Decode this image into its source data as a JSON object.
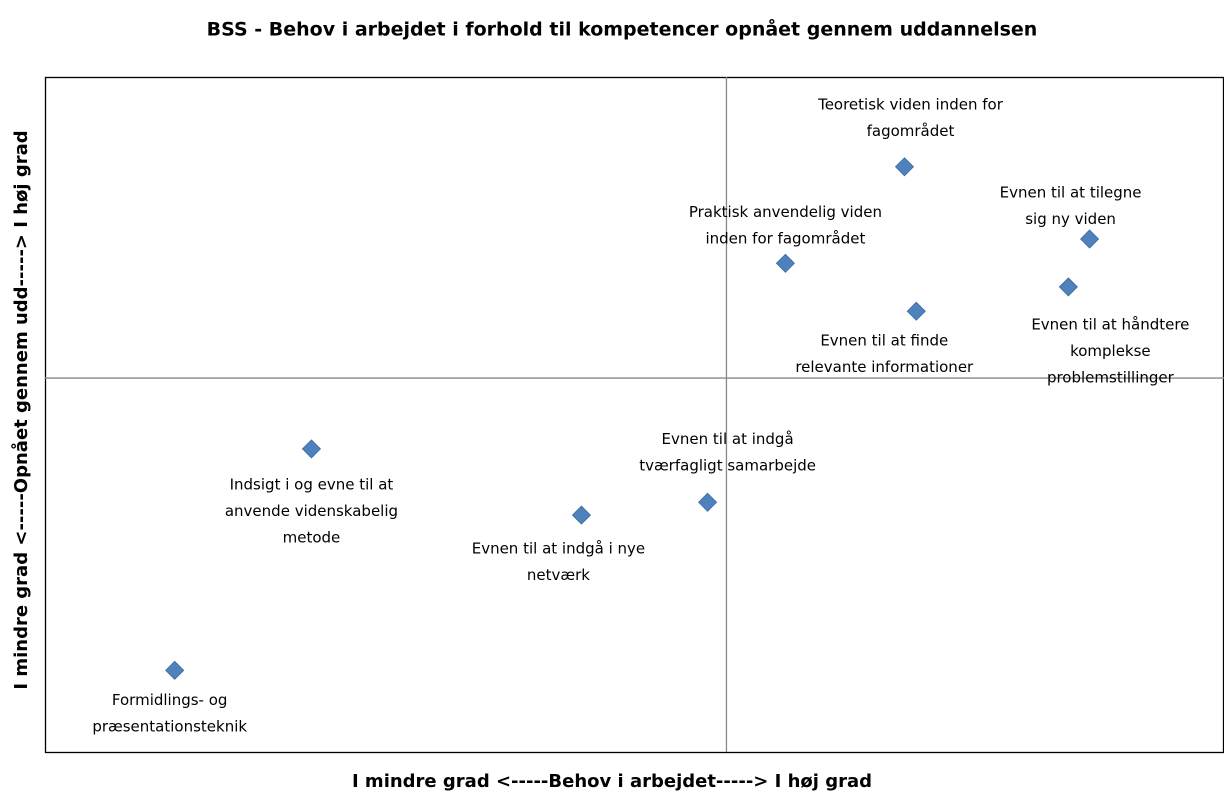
{
  "chart_data": {
    "type": "scatter",
    "title": "BSS - Behov i arbejdet i forhold til kompetencer opnået gennem uddannelsen",
    "x_label": "I mindre grad <-----Behov i arbejdet-----> I høj grad",
    "y_label": "I mindre grad <-----Opnået gennem udd-----> I høj grad",
    "xlim": [
      0,
      100
    ],
    "ylim": [
      0,
      100
    ],
    "x_reference": 57.8,
    "y_reference": 55.4,
    "color": "#4f81bd",
    "labels": [
      [
        "Teoretisk viden inden for",
        "fagområdet"
      ],
      [
        "Evnen til at tilegne",
        "sig ny viden"
      ],
      [
        "Praktisk anvendelig viden",
        "inden for fagområdet"
      ],
      [
        "Evnen til at håndtere",
        "komplekse",
        "problemstillinger"
      ],
      [
        "Evnen til at finde",
        "relevante informationer"
      ],
      [
        "Indsigt i og evne til at",
        "anvende videnskabelig",
        "metode"
      ],
      [
        "Evnen til at indgå",
        "tværfagligt samarbejde"
      ],
      [
        "Evnen til at indgå i nye",
        "netværk"
      ],
      [
        "Formidlings- og",
        "præsentationsteknik"
      ]
    ],
    "x": [
      72.9,
      88.6,
      62.8,
      86.8,
      73.9,
      22.6,
      56.2,
      45.5,
      11.0
    ],
    "values": [
      86.7,
      76.0,
      72.4,
      68.9,
      65.3,
      44.9,
      37.0,
      35.1,
      12.1
    ]
  }
}
